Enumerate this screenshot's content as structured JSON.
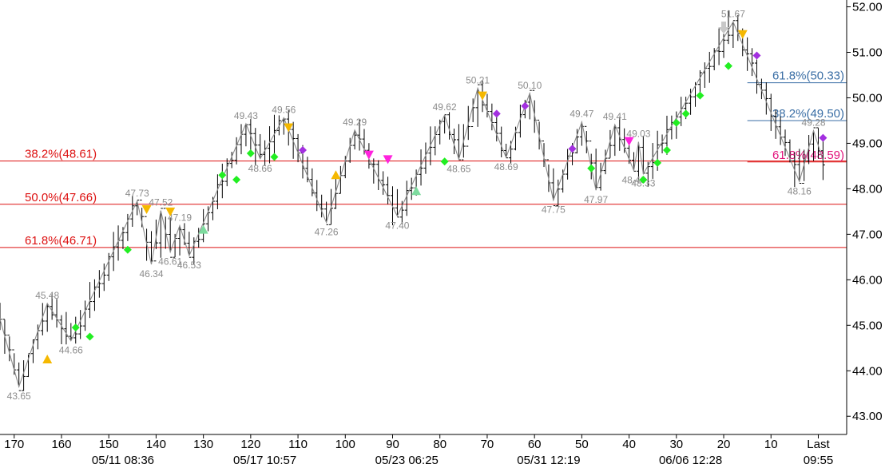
{
  "chart_data": {
    "type": "ohlc",
    "ylim": [
      42.6,
      52.15
    ],
    "xlim": [
      173,
      -6
    ],
    "y_ticks": [
      "52.00",
      "51.00",
      "50.00",
      "49.00",
      "48.00",
      "47.00",
      "46.00",
      "45.00",
      "44.00",
      "43.00"
    ],
    "y_tick_values": [
      52,
      51,
      50,
      49,
      48,
      47,
      46,
      45,
      44,
      43
    ],
    "x_ticks": [
      "170",
      "160",
      "150",
      "140",
      "130",
      "120",
      "110",
      "100",
      "90",
      "80",
      "70",
      "60",
      "50",
      "40",
      "30",
      "20",
      "10",
      "Last"
    ],
    "x_tick_values": [
      170,
      160,
      150,
      140,
      130,
      120,
      110,
      100,
      90,
      80,
      70,
      60,
      50,
      40,
      30,
      20,
      10,
      0
    ],
    "date_labels": [
      {
        "text": "05/11 08:36",
        "x": 147
      },
      {
        "text": "05/17 10:57",
        "x": 117
      },
      {
        "text": "05/23 06:25",
        "x": 87
      },
      {
        "text": "05/31 12:19",
        "x": 57
      },
      {
        "text": "06/06 12:28",
        "x": 27
      },
      {
        "text": "09:55",
        "x": 0
      }
    ],
    "swing_points": [
      {
        "x": 174,
        "y": 45.5
      },
      {
        "x": 169,
        "y": 43.65,
        "label": "43.65",
        "pos": "below"
      },
      {
        "x": 163,
        "y": 45.48,
        "label": "45.48",
        "pos": "above"
      },
      {
        "x": 158,
        "y": 44.66,
        "label": "44.66",
        "pos": "below"
      },
      {
        "x": 144,
        "y": 47.73,
        "label": "47.73",
        "pos": "above"
      },
      {
        "x": 141,
        "y": 46.34,
        "label": "46.34",
        "pos": "below"
      },
      {
        "x": 139,
        "y": 47.52,
        "label": "47.52",
        "pos": "above"
      },
      {
        "x": 137,
        "y": 46.61,
        "label": "46.61",
        "pos": "below"
      },
      {
        "x": 135,
        "y": 47.19,
        "label": "47.19",
        "pos": "above"
      },
      {
        "x": 133,
        "y": 46.53,
        "label": "46.53",
        "pos": "below"
      },
      {
        "x": 121,
        "y": 49.43,
        "label": "49.43",
        "pos": "above"
      },
      {
        "x": 118,
        "y": 48.66,
        "label": "48.66",
        "pos": "below"
      },
      {
        "x": 113,
        "y": 49.56,
        "label": "49.56",
        "pos": "above"
      },
      {
        "x": 104,
        "y": 47.26,
        "label": "47.26",
        "pos": "below"
      },
      {
        "x": 98,
        "y": 49.29,
        "label": "49.29",
        "pos": "above"
      },
      {
        "x": 89,
        "y": 47.4,
        "label": "47.40",
        "pos": "below"
      },
      {
        "x": 79,
        "y": 49.62,
        "label": "49.62",
        "pos": "above"
      },
      {
        "x": 76,
        "y": 48.65,
        "label": "48.65",
        "pos": "below"
      },
      {
        "x": 72,
        "y": 50.21,
        "label": "50.21",
        "pos": "above"
      },
      {
        "x": 66,
        "y": 48.69,
        "label": "48.69",
        "pos": "below"
      },
      {
        "x": 61,
        "y": 50.1,
        "label": "50.10",
        "pos": "above"
      },
      {
        "x": 56,
        "y": 47.75,
        "label": "47.75",
        "pos": "below"
      },
      {
        "x": 50,
        "y": 49.47,
        "label": "49.47",
        "pos": "above"
      },
      {
        "x": 47,
        "y": 47.97,
        "label": "47.97",
        "pos": "below"
      },
      {
        "x": 43,
        "y": 49.41,
        "label": "49.41",
        "pos": "above"
      },
      {
        "x": 39,
        "y": 48.4,
        "label": "48.40",
        "pos": "below"
      },
      {
        "x": 38,
        "y": 49.03,
        "label": "49.03",
        "pos": "above"
      },
      {
        "x": 37,
        "y": 48.33,
        "label": "48.33",
        "pos": "below"
      },
      {
        "x": 18,
        "y": 51.67,
        "label": "51.67",
        "pos": "above"
      },
      {
        "x": 4,
        "y": 48.16,
        "label": "48.16",
        "pos": "below"
      },
      {
        "x": 1,
        "y": 49.28,
        "label": "49.28",
        "pos": "above"
      },
      {
        "x": -1,
        "y": 48.62
      }
    ],
    "fib_levels": [
      {
        "label": "38.2%(48.61)",
        "value": 48.61,
        "color": "#dd1111",
        "text_color": "#dd1111",
        "label_side": "left",
        "x_from": 173
      },
      {
        "label": "50.0%(47.66)",
        "value": 47.66,
        "color": "#dd1111",
        "text_color": "#dd1111",
        "label_side": "left",
        "x_from": 173
      },
      {
        "label": "61.8%(46.71)",
        "value": 46.71,
        "color": "#dd1111",
        "text_color": "#dd1111",
        "label_side": "left",
        "x_from": 173
      },
      {
        "label": "61.8%(50.33)",
        "value": 50.33,
        "color": "#3a6ea5",
        "text_color": "#3a6ea5",
        "label_side": "right",
        "x_from": 15
      },
      {
        "label": "38.2%(49.50)",
        "value": 49.5,
        "color": "#3a6ea5",
        "text_color": "#3a6ea5",
        "label_side": "right",
        "x_from": 15
      },
      {
        "label": "61.8%(48.59)",
        "value": 48.59,
        "color": "#dd1111",
        "text_color": "#e2157d",
        "label_side": "right",
        "x_from": 15
      }
    ],
    "markers": [
      {
        "shape": "diamond",
        "color": "#22ee22",
        "x": 157,
        "y": 44.95
      },
      {
        "shape": "diamond",
        "color": "#22ee22",
        "x": 154,
        "y": 44.75
      },
      {
        "shape": "diamond",
        "color": "#22ee22",
        "x": 146,
        "y": 46.66
      },
      {
        "shape": "diamond",
        "color": "#22ee22",
        "x": 126,
        "y": 48.3
      },
      {
        "shape": "diamond",
        "color": "#22ee22",
        "x": 123,
        "y": 48.2
      },
      {
        "shape": "diamond",
        "color": "#22ee22",
        "x": 120,
        "y": 48.78
      },
      {
        "shape": "diamond",
        "color": "#22ee22",
        "x": 115,
        "y": 48.7
      },
      {
        "shape": "diamond",
        "color": "#22ee22",
        "x": 79,
        "y": 48.6
      },
      {
        "shape": "diamond",
        "color": "#22ee22",
        "x": 48,
        "y": 48.45
      },
      {
        "shape": "diamond",
        "color": "#22ee22",
        "x": 37,
        "y": 48.2
      },
      {
        "shape": "diamond",
        "color": "#22ee22",
        "x": 34,
        "y": 48.57
      },
      {
        "shape": "diamond",
        "color": "#22ee22",
        "x": 32,
        "y": 48.85
      },
      {
        "shape": "diamond",
        "color": "#22ee22",
        "x": 30,
        "y": 49.45
      },
      {
        "shape": "diamond",
        "color": "#22ee22",
        "x": 28,
        "y": 49.65
      },
      {
        "shape": "diamond",
        "color": "#22ee22",
        "x": 25,
        "y": 50.05
      },
      {
        "shape": "diamond",
        "color": "#22ee22",
        "x": 19,
        "y": 50.7
      },
      {
        "shape": "diamond",
        "color": "#a330e0",
        "x": 109,
        "y": 48.85
      },
      {
        "shape": "diamond",
        "color": "#a330e0",
        "x": 68,
        "y": 49.65
      },
      {
        "shape": "diamond",
        "color": "#a330e0",
        "x": 62,
        "y": 49.82
      },
      {
        "shape": "diamond",
        "color": "#a330e0",
        "x": 52,
        "y": 48.88
      },
      {
        "shape": "diamond",
        "color": "#a330e0",
        "x": 13,
        "y": 50.93
      },
      {
        "shape": "diamond",
        "color": "#a330e0",
        "x": -1,
        "y": 49.12
      },
      {
        "shape": "triangle-up",
        "color": "#f5b800",
        "x": 163,
        "y": 44.25
      },
      {
        "shape": "triangle-up",
        "color": "#f5b800",
        "x": 102,
        "y": 48.3
      },
      {
        "shape": "triangle-down",
        "color": "#f5b800",
        "x": 142,
        "y": 47.55
      },
      {
        "shape": "triangle-down",
        "color": "#f5b800",
        "x": 137,
        "y": 47.5
      },
      {
        "shape": "triangle-down",
        "color": "#f5b800",
        "x": 112,
        "y": 49.35
      },
      {
        "shape": "triangle-down",
        "color": "#f5b800",
        "x": 71,
        "y": 50.05
      },
      {
        "shape": "triangle-down",
        "color": "#f5b800",
        "x": 16,
        "y": 51.4
      },
      {
        "shape": "triangle-up",
        "color": "#7ddb9e",
        "x": 130,
        "y": 47.1
      },
      {
        "shape": "triangle-up",
        "color": "#7ddb9e",
        "x": 85,
        "y": 47.95
      },
      {
        "shape": "triangle-down",
        "color": "#ff22dd",
        "x": 95,
        "y": 48.75
      },
      {
        "shape": "triangle-down",
        "color": "#ff22dd",
        "x": 91,
        "y": 48.65
      },
      {
        "shape": "triangle-down",
        "color": "#ff22dd",
        "x": 40,
        "y": 49.05
      },
      {
        "shape": "arrow-down",
        "color": "#c8c8c8",
        "x": 20,
        "y": 51.5
      }
    ],
    "bar_color": "#000000",
    "zigzag_color": "#8c8c8c",
    "label_color": "#8c8c8c"
  }
}
